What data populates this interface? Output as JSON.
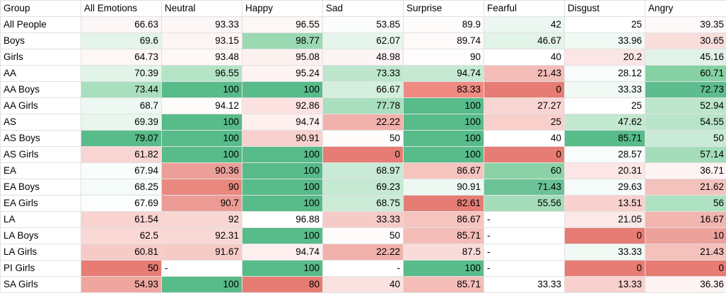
{
  "sheet": {
    "headers": [
      "Group",
      "All Emotions",
      "Neutral",
      "Happy",
      "Sad",
      "Surprise",
      "Fearful",
      "Disgust",
      "Angry"
    ],
    "rows": [
      {
        "label": "All People",
        "cells": [
          {
            "v": "66.63",
            "a": "r",
            "bg": "#fdf6f6"
          },
          {
            "v": "93.33",
            "a": "r",
            "bg": "#fdf6f6"
          },
          {
            "v": "96.55",
            "a": "r",
            "bg": "#fdf7f6"
          },
          {
            "v": "53.85",
            "a": "r",
            "bg": "#fbfdfc"
          },
          {
            "v": "89.9",
            "a": "r",
            "bg": "#fefbfb"
          },
          {
            "v": "42",
            "a": "r",
            "bg": "#ecf7f1"
          },
          {
            "v": "25",
            "a": "r",
            "bg": "#ffffff"
          },
          {
            "v": "39.35",
            "a": "r",
            "bg": "#fef9f9"
          }
        ]
      },
      {
        "label": "Boys",
        "cells": [
          {
            "v": "69.6",
            "a": "r",
            "bg": "#e4f4ea"
          },
          {
            "v": "93.15",
            "a": "r",
            "bg": "#fdf5f4"
          },
          {
            "v": "98.77",
            "a": "r",
            "bg": "#9bd9b3"
          },
          {
            "v": "62.07",
            "a": "r",
            "bg": "#e6f5ec"
          },
          {
            "v": "89.74",
            "a": "r",
            "bg": "#fefafa"
          },
          {
            "v": "46.67",
            "a": "r",
            "bg": "#e2f3e8"
          },
          {
            "v": "33.96",
            "a": "r",
            "bg": "#f1f9f4"
          },
          {
            "v": "30.65",
            "a": "r",
            "bg": "#f9dedc"
          }
        ]
      },
      {
        "label": "Girls",
        "cells": [
          {
            "v": "64.73",
            "a": "r",
            "bg": "#fdf7f6"
          },
          {
            "v": "93.48",
            "a": "r",
            "bg": "#fef8f7"
          },
          {
            "v": "95.08",
            "a": "r",
            "bg": "#fdf1f0"
          },
          {
            "v": "48.98",
            "a": "r",
            "bg": "#fdf5f5"
          },
          {
            "v": "90",
            "a": "r",
            "bg": "#fefcfc"
          },
          {
            "v": "40",
            "a": "r",
            "bg": "#ffffff"
          },
          {
            "v": "20.2",
            "a": "r",
            "bg": "#fbe6e5"
          },
          {
            "v": "45.16",
            "a": "r",
            "bg": "#e1f3e8"
          }
        ]
      },
      {
        "label": "AA",
        "cells": [
          {
            "v": "70.39",
            "a": "r",
            "bg": "#e2f3e8"
          },
          {
            "v": "96.55",
            "a": "r",
            "bg": "#b4e3c6"
          },
          {
            "v": "95.24",
            "a": "r",
            "bg": "#fdf3f2"
          },
          {
            "v": "73.33",
            "a": "r",
            "bg": "#bde6cc"
          },
          {
            "v": "94.74",
            "a": "r",
            "bg": "#c5e9d2"
          },
          {
            "v": "21.43",
            "a": "r",
            "bg": "#f4bcb7"
          },
          {
            "v": "28.12",
            "a": "r",
            "bg": "#f8fcfa"
          },
          {
            "v": "60.71",
            "a": "r",
            "bg": "#86d1a3"
          }
        ]
      },
      {
        "label": "AA Boys",
        "cells": [
          {
            "v": "73.44",
            "a": "r",
            "bg": "#a9dfbe"
          },
          {
            "v": "100",
            "a": "r",
            "bg": "#57bb8a"
          },
          {
            "v": "100",
            "a": "r",
            "bg": "#57bb8a"
          },
          {
            "v": "66.67",
            "a": "r",
            "bg": "#d4efde"
          },
          {
            "v": "83.33",
            "a": "r",
            "bg": "#ef8b83"
          },
          {
            "v": "0",
            "a": "r",
            "bg": "#e67c73"
          },
          {
            "v": "33.33",
            "a": "r",
            "bg": "#f1f9f4"
          },
          {
            "v": "72.73",
            "a": "r",
            "bg": "#5ebd8f"
          }
        ]
      },
      {
        "label": "AA Girls",
        "cells": [
          {
            "v": "68.7",
            "a": "r",
            "bg": "#eef8f2"
          },
          {
            "v": "94.12",
            "a": "r",
            "bg": "#fefbfb"
          },
          {
            "v": "92.86",
            "a": "r",
            "bg": "#fbe2e0"
          },
          {
            "v": "77.78",
            "a": "r",
            "bg": "#a9dfbe"
          },
          {
            "v": "100",
            "a": "r",
            "bg": "#57bb8a"
          },
          {
            "v": "27.27",
            "a": "r",
            "bg": "#f8d5d2"
          },
          {
            "v": "25",
            "a": "r",
            "bg": "#ffffff"
          },
          {
            "v": "52.94",
            "a": "r",
            "bg": "#bde6cc"
          }
        ]
      },
      {
        "label": "AS",
        "cells": [
          {
            "v": "69.39",
            "a": "r",
            "bg": "#e8f6ed"
          },
          {
            "v": "100",
            "a": "r",
            "bg": "#57bb8a"
          },
          {
            "v": "94.74",
            "a": "r",
            "bg": "#fdf0ef"
          },
          {
            "v": "22.22",
            "a": "r",
            "bg": "#f1b1ab"
          },
          {
            "v": "100",
            "a": "r",
            "bg": "#57bb8a"
          },
          {
            "v": "25",
            "a": "r",
            "bg": "#f8cfcb"
          },
          {
            "v": "47.62",
            "a": "r",
            "bg": "#c2e8d0"
          },
          {
            "v": "54.55",
            "a": "r",
            "bg": "#b8e4c9"
          }
        ]
      },
      {
        "label": "AS Boys",
        "cells": [
          {
            "v": "79.07",
            "a": "r",
            "bg": "#57bb8a"
          },
          {
            "v": "100",
            "a": "r",
            "bg": "#57bb8a"
          },
          {
            "v": "90.91",
            "a": "r",
            "bg": "#f8d1ce"
          },
          {
            "v": "50",
            "a": "r",
            "bg": "#fefbfb"
          },
          {
            "v": "100",
            "a": "r",
            "bg": "#57bb8a"
          },
          {
            "v": "40",
            "a": "r",
            "bg": "#ffffff"
          },
          {
            "v": "85.71",
            "a": "r",
            "bg": "#57bb8a"
          },
          {
            "v": "50",
            "a": "r",
            "bg": "#c9ead6"
          }
        ]
      },
      {
        "label": "AS Girls",
        "cells": [
          {
            "v": "61.82",
            "a": "r",
            "bg": "#f8d5d2"
          },
          {
            "v": "100",
            "a": "r",
            "bg": "#57bb8a"
          },
          {
            "v": "100",
            "a": "r",
            "bg": "#57bb8a"
          },
          {
            "v": "0",
            "a": "r",
            "bg": "#e67c73"
          },
          {
            "v": "100",
            "a": "r",
            "bg": "#57bb8a"
          },
          {
            "v": "0",
            "a": "r",
            "bg": "#e67c73"
          },
          {
            "v": "28.57",
            "a": "r",
            "bg": "#f8fcfa"
          },
          {
            "v": "57.14",
            "a": "r",
            "bg": "#a5ddbb"
          }
        ]
      },
      {
        "label": "EA",
        "cells": [
          {
            "v": "67.94",
            "a": "r",
            "bg": "#f8fcfa"
          },
          {
            "v": "90.36",
            "a": "r",
            "bg": "#ec9f98"
          },
          {
            "v": "100",
            "a": "r",
            "bg": "#57bb8a"
          },
          {
            "v": "68.97",
            "a": "r",
            "bg": "#c9ead6"
          },
          {
            "v": "86.67",
            "a": "r",
            "bg": "#f6c4bf"
          },
          {
            "v": "60",
            "a": "r",
            "bg": "#8bd3a6"
          },
          {
            "v": "20.31",
            "a": "r",
            "bg": "#fbe6e5"
          },
          {
            "v": "36.71",
            "a": "r",
            "bg": "#fdf4f3"
          }
        ]
      },
      {
        "label": "EA Boys",
        "cells": [
          {
            "v": "68.25",
            "a": "r",
            "bg": "#f5fbf8"
          },
          {
            "v": "90",
            "a": "r",
            "bg": "#e9887f"
          },
          {
            "v": "100",
            "a": "r",
            "bg": "#57bb8a"
          },
          {
            "v": "69.23",
            "a": "r",
            "bg": "#c5e9d2"
          },
          {
            "v": "90.91",
            "a": "r",
            "bg": "#eef8f2"
          },
          {
            "v": "71.43",
            "a": "r",
            "bg": "#6ac296"
          },
          {
            "v": "29.63",
            "a": "r",
            "bg": "#f5fbf8"
          },
          {
            "v": "21.62",
            "a": "r",
            "bg": "#f4c2bd"
          }
        ]
      },
      {
        "label": "EA Girls",
        "cells": [
          {
            "v": "67.69",
            "a": "r",
            "bg": "#fcfefd"
          },
          {
            "v": "90.7",
            "a": "r",
            "bg": "#ec9c95"
          },
          {
            "v": "100",
            "a": "r",
            "bg": "#57bb8a"
          },
          {
            "v": "68.75",
            "a": "r",
            "bg": "#cbebd7"
          },
          {
            "v": "82.61",
            "a": "r",
            "bg": "#e67c73"
          },
          {
            "v": "55.56",
            "a": "r",
            "bg": "#a5ddbb"
          },
          {
            "v": "13.51",
            "a": "r",
            "bg": "#f8d1ce"
          },
          {
            "v": "56",
            "a": "r",
            "bg": "#aee1c1"
          }
        ]
      },
      {
        "label": "LA",
        "cells": [
          {
            "v": "61.54",
            "a": "r",
            "bg": "#f8d3d0"
          },
          {
            "v": "92",
            "a": "r",
            "bg": "#f8d6d2"
          },
          {
            "v": "96.88",
            "a": "r",
            "bg": "#ffffff"
          },
          {
            "v": "33.33",
            "a": "r",
            "bg": "#f6cbc7"
          },
          {
            "v": "86.67",
            "a": "r",
            "bg": "#f6c4bf"
          },
          {
            "v": "-",
            "a": "l",
            "bg": "#ffffff"
          },
          {
            "v": "21.05",
            "a": "r",
            "bg": "#fbe9e7"
          },
          {
            "v": "16.67",
            "a": "r",
            "bg": "#f2b5b0"
          }
        ]
      },
      {
        "label": "LA Boys",
        "cells": [
          {
            "v": "62.5",
            "a": "r",
            "bg": "#f9d8d5"
          },
          {
            "v": "92.31",
            "a": "r",
            "bg": "#f8d8d5"
          },
          {
            "v": "100",
            "a": "r",
            "bg": "#57bb8a"
          },
          {
            "v": "50",
            "a": "r",
            "bg": "#fefbfb"
          },
          {
            "v": "85.71",
            "a": "r",
            "bg": "#f4bdb8"
          },
          {
            "v": "-",
            "a": "l",
            "bg": "#ffffff"
          },
          {
            "v": "0",
            "a": "r",
            "bg": "#e67c73"
          },
          {
            "v": "10",
            "a": "r",
            "bg": "#eca19a"
          }
        ]
      },
      {
        "label": "LA Girls",
        "cells": [
          {
            "v": "60.81",
            "a": "r",
            "bg": "#f6cbc7"
          },
          {
            "v": "91.67",
            "a": "r",
            "bg": "#f6cbc6"
          },
          {
            "v": "94.74",
            "a": "r",
            "bg": "#fdf0ef"
          },
          {
            "v": "22.22",
            "a": "r",
            "bg": "#f1b1ab"
          },
          {
            "v": "87.5",
            "a": "r",
            "bg": "#f9dcd9"
          },
          {
            "v": "-",
            "a": "l",
            "bg": "#ffffff"
          },
          {
            "v": "33.33",
            "a": "r",
            "bg": "#f1f9f4"
          },
          {
            "v": "21.43",
            "a": "r",
            "bg": "#f4c1bc"
          }
        ]
      },
      {
        "label": "PI Girls",
        "cells": [
          {
            "v": "50",
            "a": "r",
            "bg": "#e67c73"
          },
          {
            "v": "-",
            "a": "l",
            "bg": "#ffffff"
          },
          {
            "v": "100",
            "a": "r",
            "bg": "#57bb8a"
          },
          {
            "v": "-",
            "a": "r",
            "bg": "#ffffff"
          },
          {
            "v": "100",
            "a": "r",
            "bg": "#57bb8a"
          },
          {
            "v": "-",
            "a": "l",
            "bg": "#ffffff"
          },
          {
            "v": "0",
            "a": "r",
            "bg": "#e67c73"
          },
          {
            "v": "0",
            "a": "r",
            "bg": "#e67c73"
          }
        ]
      },
      {
        "label": "SA Girls",
        "cells": [
          {
            "v": "54.93",
            "a": "r",
            "bg": "#efa69f"
          },
          {
            "v": "100",
            "a": "r",
            "bg": "#57bb8a"
          },
          {
            "v": "80",
            "a": "r",
            "bg": "#e67c73"
          },
          {
            "v": "40",
            "a": "r",
            "bg": "#fae2e0"
          },
          {
            "v": "85.71",
            "a": "r",
            "bg": "#f4bdb8"
          },
          {
            "v": "33.33",
            "a": "r",
            "bg": "#ffffff"
          },
          {
            "v": "13.33",
            "a": "r",
            "bg": "#f8d0cd"
          },
          {
            "v": "36.36",
            "a": "r",
            "bg": "#fdf3f2"
          }
        ]
      }
    ]
  }
}
